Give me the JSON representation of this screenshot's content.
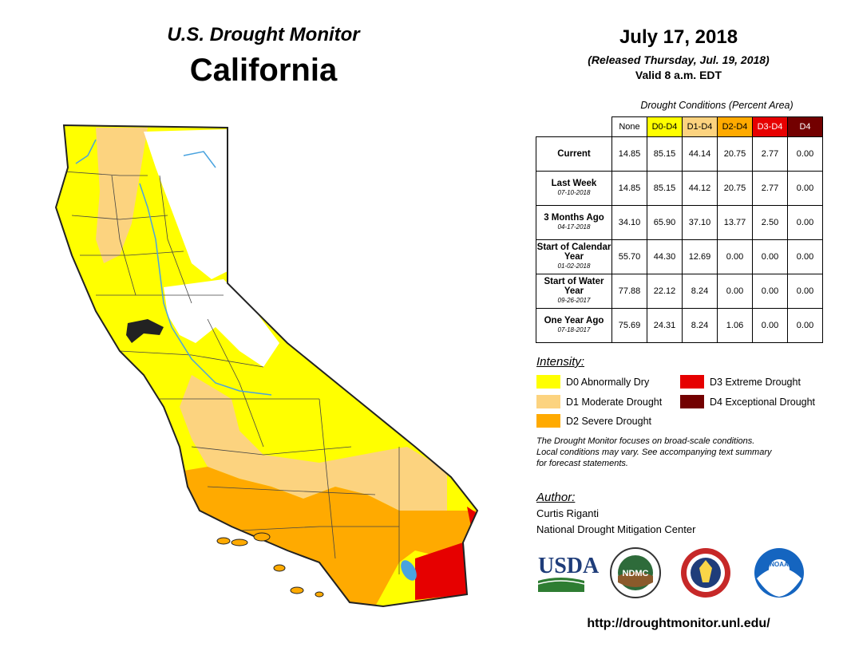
{
  "header": {
    "title": "U.S. Drought Monitor",
    "state": "California"
  },
  "map_info": {
    "date": "July 17, 2018",
    "released": "(Released Thursday, Jul. 19, 2018)",
    "valid": "Valid 8 a.m. EDT"
  },
  "table": {
    "caption": "Drought Conditions (Percent Area)",
    "columns": [
      {
        "label": "None",
        "bg": "#ffffff",
        "fg": "#000000"
      },
      {
        "label": "D0-D4",
        "bg": "#ffff00",
        "fg": "#000000"
      },
      {
        "label": "D1-D4",
        "bg": "#fcd37f",
        "fg": "#000000"
      },
      {
        "label": "D2-D4",
        "bg": "#ffaa00",
        "fg": "#000000"
      },
      {
        "label": "D3-D4",
        "bg": "#e60000",
        "fg": "#ffffff"
      },
      {
        "label": "D4",
        "bg": "#730000",
        "fg": "#ffffff"
      }
    ],
    "rows": [
      {
        "label": "Current",
        "date": "",
        "values": [
          "14.85",
          "85.15",
          "44.14",
          "20.75",
          "2.77",
          "0.00"
        ]
      },
      {
        "label": "Last Week",
        "date": "07-10-2018",
        "values": [
          "14.85",
          "85.15",
          "44.12",
          "20.75",
          "2.77",
          "0.00"
        ]
      },
      {
        "label": "3 Months Ago",
        "date": "04-17-2018",
        "values": [
          "34.10",
          "65.90",
          "37.10",
          "13.77",
          "2.50",
          "0.00"
        ]
      },
      {
        "label": "Start of Calendar Year",
        "date": "01-02-2018",
        "values": [
          "55.70",
          "44.30",
          "12.69",
          "0.00",
          "0.00",
          "0.00"
        ]
      },
      {
        "label": "Start of Water Year",
        "date": "09-26-2017",
        "values": [
          "77.88",
          "22.12",
          "8.24",
          "0.00",
          "0.00",
          "0.00"
        ]
      },
      {
        "label": "One Year Ago",
        "date": "07-18-2017",
        "values": [
          "75.69",
          "24.31",
          "8.24",
          "1.06",
          "0.00",
          "0.00"
        ]
      }
    ]
  },
  "legend": {
    "title": "Intensity:",
    "items": [
      {
        "label": "D0 Abnormally Dry",
        "color": "#ffff00"
      },
      {
        "label": "D1 Moderate Drought",
        "color": "#fcd37f"
      },
      {
        "label": "D2 Severe Drought",
        "color": "#ffaa00"
      },
      {
        "label": "D3 Extreme Drought",
        "color": "#e60000"
      },
      {
        "label": "D4 Exceptional Drought",
        "color": "#730000"
      }
    ]
  },
  "disclaimer": [
    "The Drought Monitor focuses on broad-scale conditions.",
    "Local conditions may vary. See accompanying text summary",
    "for forecast statements."
  ],
  "author": {
    "title": "Author:",
    "name": "Curtis Riganti",
    "org": "National Drought Mitigation Center"
  },
  "logos": {
    "usda": "USDA",
    "ndmc": "NDMC",
    "noaa": "NOAA"
  },
  "footer": {
    "url": "http://droughtmonitor.unl.edu/"
  },
  "colors": {
    "none": "#ffffff",
    "d0": "#ffff00",
    "d1": "#fcd37f",
    "d2": "#ffaa00",
    "d3": "#e60000",
    "d4": "#730000",
    "water": "#4aa3df"
  }
}
